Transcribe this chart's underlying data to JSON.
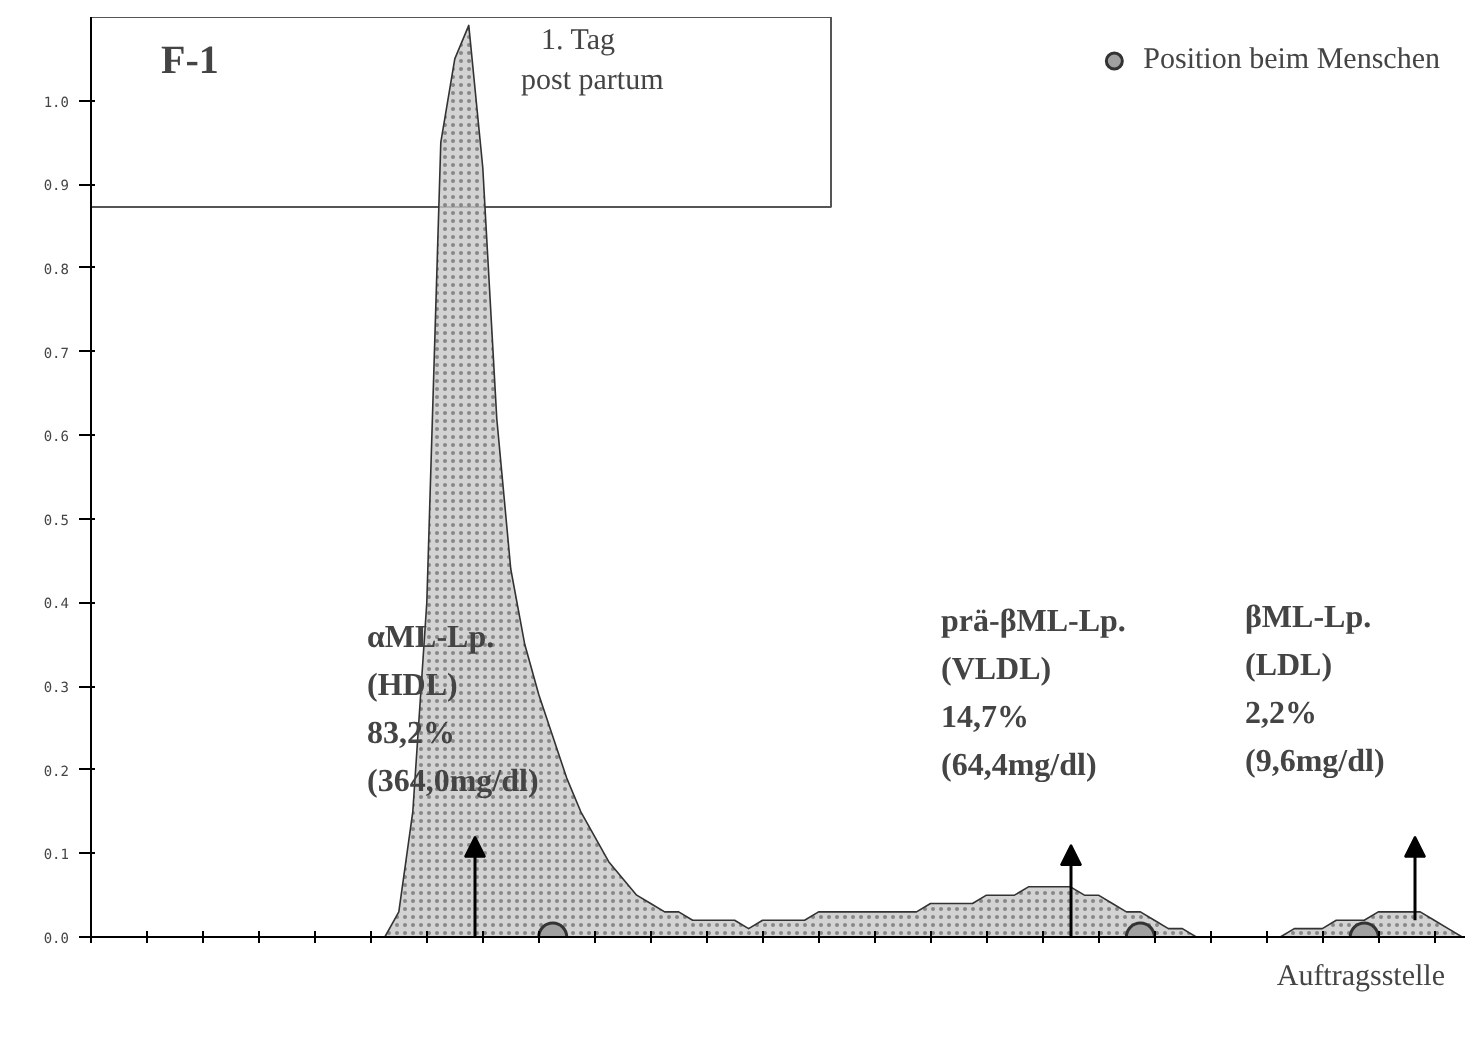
{
  "chart_data": {
    "type": "area",
    "title": "F-1",
    "subtitle": "1. Tag\npost partum",
    "xlabel": "Auftragsstelle",
    "categories": [
      null,
      null,
      null,
      null,
      null,
      null,
      null,
      null,
      null,
      null,
      null,
      null,
      null,
      null,
      null,
      null,
      null,
      null,
      null,
      null,
      null,
      null,
      null,
      null,
      null,
      null,
      null,
      null,
      null,
      null,
      null,
      null,
      null,
      null,
      null,
      null,
      null,
      null,
      null,
      null,
      null,
      null,
      null,
      null,
      null,
      null,
      null,
      null,
      null,
      null,
      null,
      null,
      null,
      null,
      null,
      null,
      null,
      null,
      null,
      null,
      null,
      null,
      null,
      null,
      null,
      null,
      null,
      null,
      null,
      null,
      null,
      null,
      null,
      null,
      null,
      null,
      null,
      null,
      null,
      null,
      null,
      null,
      null,
      null,
      null,
      null,
      null,
      null,
      null,
      null,
      null,
      null,
      null,
      null,
      null,
      null,
      null,
      null,
      null
    ],
    "series": [
      {
        "color": "#c8c8c8",
        "values": [
          0,
          0,
          0,
          0,
          0,
          0,
          0,
          0,
          0,
          0,
          0,
          0,
          0,
          0,
          0,
          0,
          0,
          0,
          0,
          0,
          0,
          0,
          0.03,
          0.15,
          0.4,
          0.95,
          1.05,
          1.09,
          0.92,
          0.62,
          0.44,
          0.35,
          0.29,
          0.24,
          0.19,
          0.15,
          0.12,
          0.09,
          0.07,
          0.05,
          0.04,
          0.03,
          0.03,
          0.02,
          0.02,
          0.02,
          0.02,
          0.01,
          0.02,
          0.02,
          0.02,
          0.02,
          0.03,
          0.03,
          0.03,
          0.03,
          0.03,
          0.03,
          0.03,
          0.03,
          0.04,
          0.04,
          0.04,
          0.04,
          0.05,
          0.05,
          0.05,
          0.06,
          0.06,
          0.06,
          0.06,
          0.05,
          0.05,
          0.04,
          0.03,
          0.03,
          0.02,
          0.01,
          0.01,
          0,
          0,
          0,
          0,
          0,
          0,
          0,
          0.01,
          0.01,
          0.01,
          0.02,
          0.02,
          0.02,
          0.03,
          0.03,
          0.03,
          0.03,
          0.02,
          0.01,
          0
        ]
      },
      {
        "type": "scatter",
        "name": "Position beim Menschen",
        "color": "#a0a0a0",
        "marker": "circle",
        "values": [
          null,
          null,
          null,
          null,
          null,
          null,
          null,
          null,
          null,
          null,
          null,
          null,
          null,
          null,
          null,
          null,
          null,
          null,
          null,
          null,
          null,
          null,
          null,
          null,
          null,
          null,
          null,
          null,
          null,
          null,
          null,
          null,
          null,
          0,
          null,
          null,
          null,
          null,
          null,
          null,
          null,
          null,
          null,
          null,
          null,
          null,
          null,
          null,
          null,
          null,
          null,
          null,
          null,
          null,
          null,
          null,
          null,
          null,
          null,
          null,
          null,
          null,
          null,
          null,
          null,
          null,
          null,
          null,
          null,
          null,
          null,
          null,
          null,
          null,
          null,
          0,
          null,
          null,
          null,
          null,
          null,
          null,
          null,
          null,
          null,
          null,
          null,
          null,
          null,
          null,
          null,
          0,
          null,
          null,
          null,
          null,
          null,
          null,
          null
        ]
      }
    ],
    "ylim": [
      0,
      1.1
    ],
    "yticks": [
      {
        "value": 0,
        "label": "0.0"
      },
      {
        "value": 0.1,
        "label": "0.1"
      },
      {
        "value": 0.2,
        "label": "0.2"
      },
      {
        "value": 0.3,
        "label": "0.3"
      },
      {
        "value": 0.4,
        "label": "0.4"
      },
      {
        "value": 0.5,
        "label": "0.5"
      },
      {
        "value": 0.6,
        "label": "0.6"
      },
      {
        "value": 0.7,
        "label": "0.7"
      },
      {
        "value": 0.8,
        "label": "0.8"
      },
      {
        "value": 0.9,
        "label": "0.9"
      },
      {
        "value": 1,
        "label": "1.0"
      }
    ],
    "annotations": [
      "αML-Lp.\n(HDL)\n83,2%\n(364,0mg/dl)",
      "prä-βML-Lp.\n(VLDL)\n14,7%\n(64,4mg/dl)",
      "βML-Lp.\n(LDL)\n2,2%\n(9,6mg/dl)"
    ],
    "legend": "top right",
    "grid": false,
    "tick_labels": "y"
  }
}
